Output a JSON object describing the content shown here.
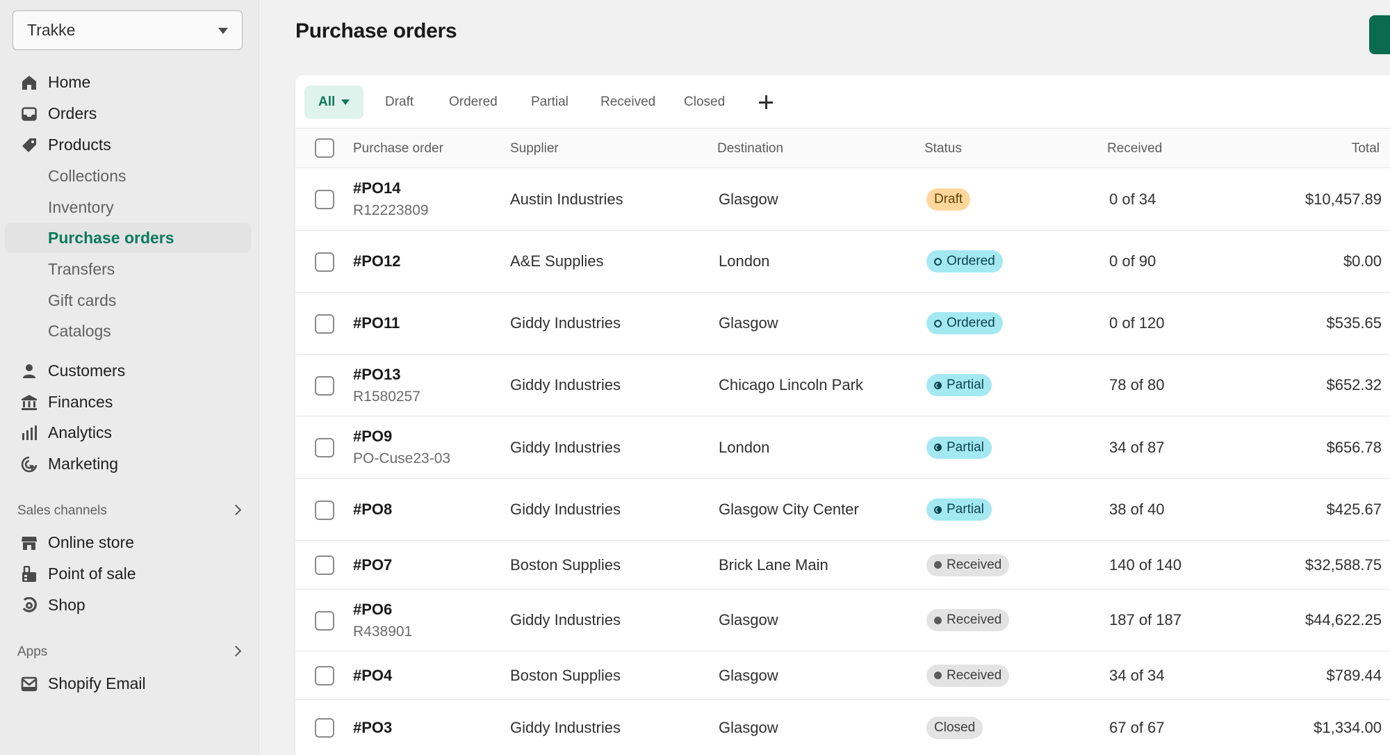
{
  "store": {
    "name": "Trakke"
  },
  "nav": {
    "main": [
      {
        "label": "Home",
        "icon": "home-icon"
      },
      {
        "label": "Orders",
        "icon": "inbox-icon"
      },
      {
        "label": "Products",
        "icon": "tag-icon"
      }
    ],
    "product_sub": [
      "Collections",
      "Inventory",
      "Purchase orders",
      "Transfers",
      "Gift cards",
      "Catalogs"
    ],
    "more": [
      {
        "label": "Customers",
        "icon": "person-icon"
      },
      {
        "label": "Finances",
        "icon": "bank-icon"
      },
      {
        "label": "Analytics",
        "icon": "bar-chart-icon"
      },
      {
        "label": "Marketing",
        "icon": "target-icon"
      }
    ],
    "sales_channels_title": "Sales channels",
    "sales_channels": [
      {
        "label": "Online store",
        "icon": "store-icon"
      },
      {
        "label": "Point of sale",
        "icon": "pos-icon"
      },
      {
        "label": "Shop",
        "icon": "shop-icon"
      }
    ],
    "apps_title": "Apps",
    "apps": [
      {
        "label": "Shopify Email",
        "icon": "mail-icon"
      }
    ]
  },
  "page": {
    "title": "Purchase orders"
  },
  "tabs": [
    "All",
    "Draft",
    "Ordered",
    "Partial",
    "Received",
    "Closed"
  ],
  "columns": {
    "purchase_order": "Purchase order",
    "supplier": "Supplier",
    "destination": "Destination",
    "status": "Status",
    "received": "Received",
    "total": "Total"
  },
  "rows": [
    {
      "id": "#PO14",
      "ref": "R12223809",
      "supplier": "Austin Industries",
      "destination": "Glasgow",
      "status": "Draft",
      "received": "0 of 34",
      "total": "$10,457.89"
    },
    {
      "id": "#PO12",
      "ref": "",
      "supplier": "A&E Supplies",
      "destination": "London",
      "status": "Ordered",
      "received": "0 of 90",
      "total": "$0.00"
    },
    {
      "id": "#PO11",
      "ref": "",
      "supplier": "Giddy Industries",
      "destination": "Glasgow",
      "status": "Ordered",
      "received": "0 of 120",
      "total": "$535.65"
    },
    {
      "id": "#PO13",
      "ref": "R1580257",
      "supplier": "Giddy Industries",
      "destination": "Chicago Lincoln Park",
      "status": "Partial",
      "received": "78 of 80",
      "total": "$652.32"
    },
    {
      "id": "#PO9",
      "ref": "PO-Cuse23-03",
      "supplier": "Giddy Industries",
      "destination": "London",
      "status": "Partial",
      "received": "34 of 87",
      "total": "$656.78"
    },
    {
      "id": "#PO8",
      "ref": "",
      "supplier": "Giddy Industries",
      "destination": "Glasgow City Center",
      "status": "Partial",
      "received": "38 of 40",
      "total": "$425.67"
    },
    {
      "id": "#PO7",
      "ref": "",
      "supplier": "Boston Supplies",
      "destination": "Brick Lane Main",
      "status": "Received",
      "received": "140 of 140",
      "total": "$32,588.75"
    },
    {
      "id": "#PO6",
      "ref": "R438901",
      "supplier": "Giddy Industries",
      "destination": "Glasgow",
      "status": "Received",
      "received": "187 of 187",
      "total": "$44,622.25"
    },
    {
      "id": "#PO4",
      "ref": "",
      "supplier": "Boston Supplies",
      "destination": "Glasgow",
      "status": "Received",
      "received": "34 of 34",
      "total": "$789.44"
    },
    {
      "id": "#PO3",
      "ref": "",
      "supplier": "Giddy Industries",
      "destination": "Glasgow",
      "status": "Closed",
      "received": "67 of 67",
      "total": "$1,334.00"
    }
  ],
  "colors": {
    "accent": "#0b7a5a",
    "primary_button": "#0b6b4f",
    "draft": "#ffd79d",
    "ordered": "#a4e8f2",
    "partial": "#a4e8f2",
    "received": "#e3e3e3",
    "closed": "#e3e3e3"
  }
}
